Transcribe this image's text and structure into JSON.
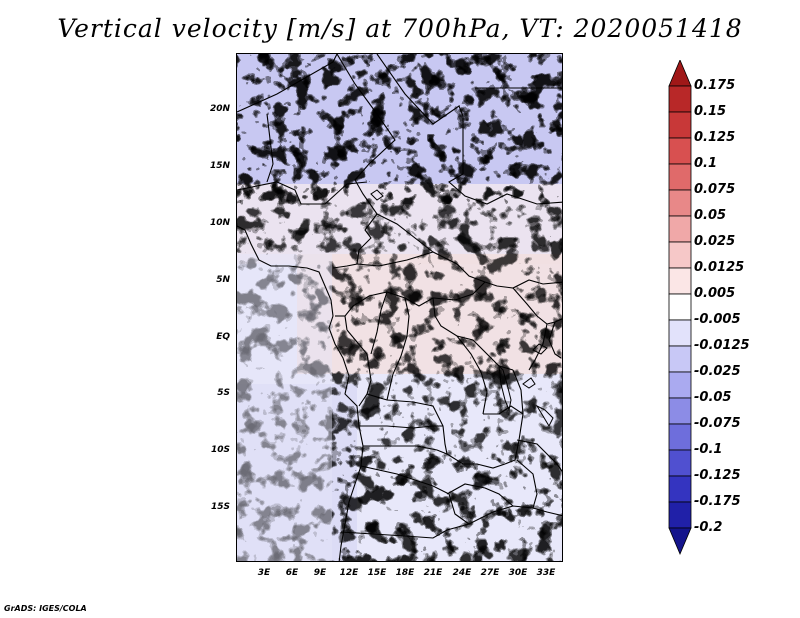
{
  "title": "Vertical velocity [m/s] at 700hPa, VT: 2020051418",
  "map": {
    "lat_labels": [
      "20N",
      "15N",
      "10N",
      "5N",
      "EQ",
      "5S",
      "10S",
      "15S"
    ],
    "lon_labels": [
      "3E",
      "6E",
      "9E",
      "12E",
      "15E",
      "18E",
      "21E",
      "24E",
      "27E",
      "30E",
      "33E"
    ]
  },
  "colorbar": {
    "levels": [
      "0.175",
      "0.15",
      "0.125",
      "0.1",
      "0.075",
      "0.05",
      "0.025",
      "0.0125",
      "0.005",
      "-0.005",
      "-0.0125",
      "-0.025",
      "-0.05",
      "-0.075",
      "-0.1",
      "-0.125",
      "-0.175",
      "-0.2"
    ],
    "colors": [
      "#a01818",
      "#b82828",
      "#c83838",
      "#d85050",
      "#e06a6a",
      "#e88888",
      "#f0a8a8",
      "#f6c8c8",
      "#fbe6e6",
      "#ffffff",
      "#e2e2fb",
      "#c8c8f6",
      "#aaaaf0",
      "#8c8ce6",
      "#6e6edc",
      "#5050d0",
      "#3434c0",
      "#2020a8",
      "#14148c"
    ],
    "top_color": "#a01818",
    "bottom_color": "#14148c"
  },
  "footer": "GrADS: IGES/COLA"
}
